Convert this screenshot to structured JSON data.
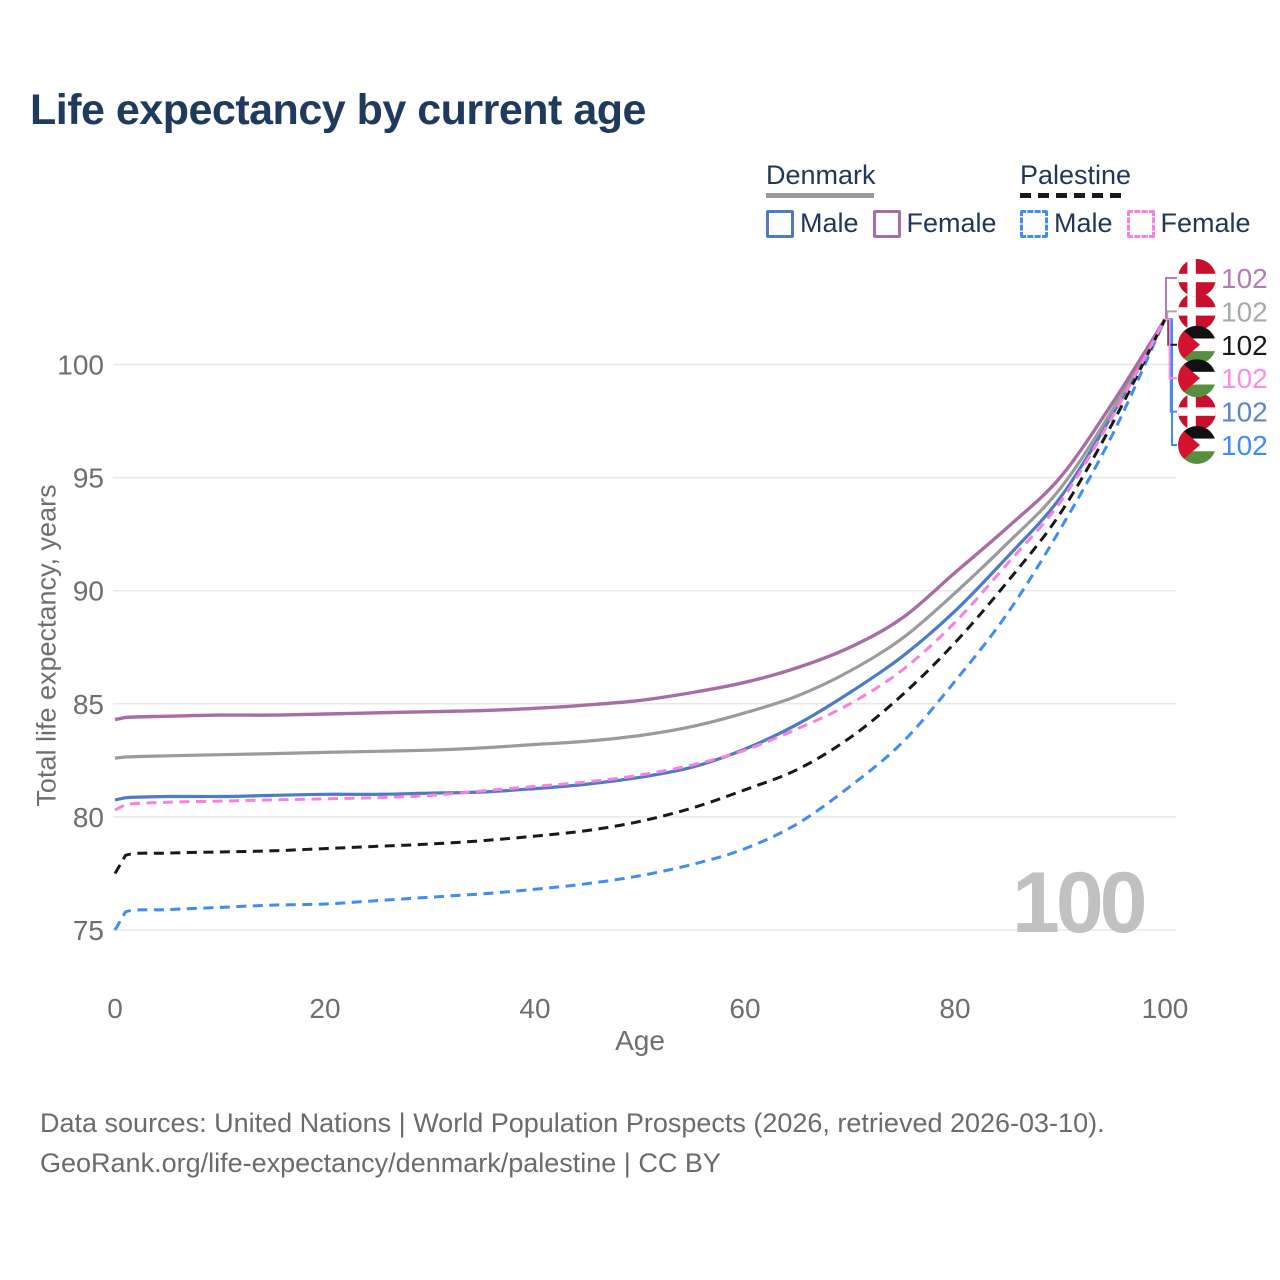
{
  "title": "Life expectancy by current age",
  "watermark": "100",
  "legend": {
    "groups": [
      {
        "title": "Denmark",
        "line_style": "solid",
        "underline_color": "#9b9b9b",
        "items": [
          {
            "label": "Male",
            "color": "#4d7bc4",
            "dash": false
          },
          {
            "label": "Female",
            "color": "#a76ea6",
            "dash": false
          }
        ]
      },
      {
        "title": "Palestine",
        "line_style": "dashed",
        "underline_color": "#191919",
        "items": [
          {
            "label": "Male",
            "color": "#3f8df2",
            "dash": true
          },
          {
            "label": "Female",
            "color": "#fa80df",
            "dash": true
          }
        ]
      }
    ]
  },
  "footer": {
    "line1": "Data sources: United Nations | World Population Prospects (2026, retrieved 2026-03-10).",
    "line2": "GeoRank.org/life-expectancy/denmark/palestine | CC BY"
  },
  "flag_colors": {
    "denmark": {
      "field": "#c8102e",
      "cross": "#ffffff"
    },
    "palestine": {
      "top": "#111111",
      "middle": "#ffffff",
      "bottom": "#578f3e",
      "triangle": "#d5132e"
    }
  },
  "chart_data": {
    "type": "line",
    "title": "Life expectancy by current age",
    "xlabel": "Age",
    "ylabel": "Total life expectancy, years",
    "x_ticks": [
      0,
      20,
      40,
      60,
      80,
      100
    ],
    "y_ticks": [
      75,
      80,
      85,
      90,
      95,
      100
    ],
    "xlim": [
      0,
      100
    ],
    "ylim": [
      73.5,
      103
    ],
    "grid": "horizontal",
    "end_value_label": "102",
    "x": [
      0,
      1,
      5,
      10,
      15,
      20,
      25,
      30,
      35,
      40,
      45,
      50,
      55,
      60,
      65,
      70,
      75,
      80,
      85,
      90,
      95,
      100
    ],
    "series": [
      {
        "name": "Denmark Male",
        "country": "Denmark",
        "sex": "Male",
        "style": "solid",
        "color": "#4d7bc4",
        "label_color": "#5d85cc",
        "flag": "denmark",
        "label_row": 4,
        "values": [
          80.75,
          80.85,
          80.9,
          80.9,
          80.95,
          81.0,
          81.0,
          81.05,
          81.1,
          81.25,
          81.45,
          81.75,
          82.2,
          83.0,
          84.1,
          85.5,
          87.1,
          89.1,
          91.5,
          94.1,
          97.8,
          102
        ]
      },
      {
        "name": "Denmark Total",
        "country": "Denmark",
        "sex": "Both",
        "style": "solid",
        "color": "#9b9b9b",
        "label_color": "#a9a9a9",
        "flag": "denmark",
        "label_row": 1,
        "values": [
          82.6,
          82.65,
          82.7,
          82.75,
          82.8,
          82.85,
          82.9,
          82.95,
          83.05,
          83.2,
          83.35,
          83.6,
          84.0,
          84.6,
          85.35,
          86.45,
          87.9,
          89.9,
          92.1,
          94.5,
          98.0,
          102
        ]
      },
      {
        "name": "Denmark Female",
        "country": "Denmark",
        "sex": "Female",
        "style": "solid",
        "color": "#a76ea6",
        "label_color": "#b17eb1",
        "flag": "denmark",
        "label_row": 0,
        "values": [
          84.3,
          84.4,
          84.45,
          84.5,
          84.5,
          84.55,
          84.6,
          84.65,
          84.7,
          84.8,
          84.95,
          85.15,
          85.5,
          85.95,
          86.6,
          87.5,
          88.8,
          90.8,
          92.8,
          95.0,
          98.3,
          102
        ]
      },
      {
        "name": "Palestine Male",
        "country": "Palestine",
        "sex": "Male",
        "style": "dashed",
        "color": "#3f8df2",
        "label_color": "#3f8df2",
        "flag": "palestine",
        "label_row": 5,
        "values": [
          75.0,
          75.8,
          75.9,
          76.0,
          76.1,
          76.15,
          76.3,
          76.45,
          76.6,
          76.8,
          77.05,
          77.4,
          77.9,
          78.6,
          79.7,
          81.35,
          83.3,
          86.0,
          89.0,
          92.7,
          96.9,
          102
        ]
      },
      {
        "name": "Palestine Total",
        "country": "Palestine",
        "sex": "Both",
        "style": "dashed",
        "color": "#191919",
        "label_color": "#1b1b1b",
        "flag": "palestine",
        "label_row": 2,
        "values": [
          77.5,
          78.3,
          78.4,
          78.45,
          78.5,
          78.6,
          78.7,
          78.8,
          78.95,
          79.15,
          79.4,
          79.8,
          80.4,
          81.2,
          82.1,
          83.5,
          85.4,
          87.7,
          90.4,
          93.4,
          97.4,
          102
        ]
      },
      {
        "name": "Palestine Female",
        "country": "Palestine",
        "sex": "Female",
        "style": "dashed",
        "color": "#fa80df",
        "label_color": "#fd8ce5",
        "flag": "palestine",
        "label_row": 3,
        "values": [
          80.3,
          80.55,
          80.65,
          80.7,
          80.75,
          80.8,
          80.85,
          80.95,
          81.15,
          81.35,
          81.55,
          81.85,
          82.3,
          82.95,
          83.9,
          85.0,
          86.5,
          88.6,
          91.2,
          93.9,
          97.7,
          102
        ]
      }
    ]
  }
}
